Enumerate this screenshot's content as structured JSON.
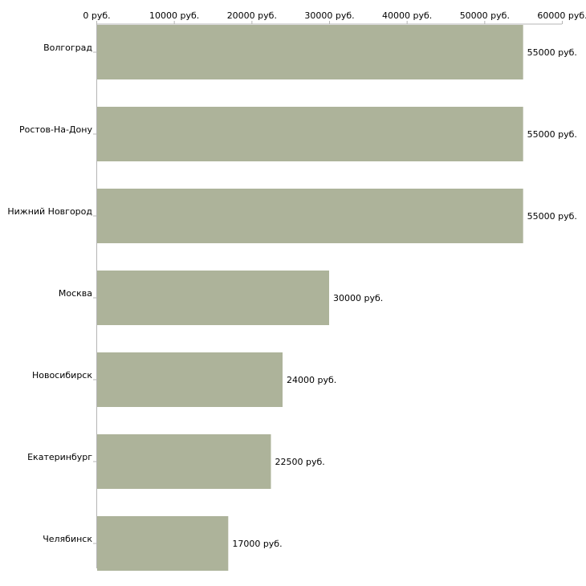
{
  "chart_data": {
    "type": "bar",
    "orientation": "horizontal",
    "title": "",
    "xlabel": "",
    "ylabel": "",
    "xlim": [
      0,
      60000
    ],
    "grid": false,
    "tick_values": [
      0,
      10000,
      20000,
      30000,
      40000,
      50000,
      60000
    ],
    "tick_labels": [
      "0 руб.",
      "10000 руб.",
      "20000 руб.",
      "30000 руб.",
      "40000 руб.",
      "50000 руб.",
      "60000 руб."
    ],
    "categories": [
      "Волгоград",
      "Ростов-На-Дону",
      "Нижний Новгород",
      "Москва",
      "Новосибирск",
      "Екатеринбург",
      "Челябинск"
    ],
    "values": [
      55000,
      55000,
      55000,
      30000,
      24000,
      22500,
      17000
    ],
    "value_labels": [
      "55000 руб.",
      "55000 руб.",
      "55000 руб.",
      "30000 руб.",
      "24000 руб.",
      "22500 руб.",
      "17000 руб."
    ],
    "colors": {
      "bar": "#adb39a",
      "axis": "#b5b5b5",
      "text": "#000000"
    }
  }
}
